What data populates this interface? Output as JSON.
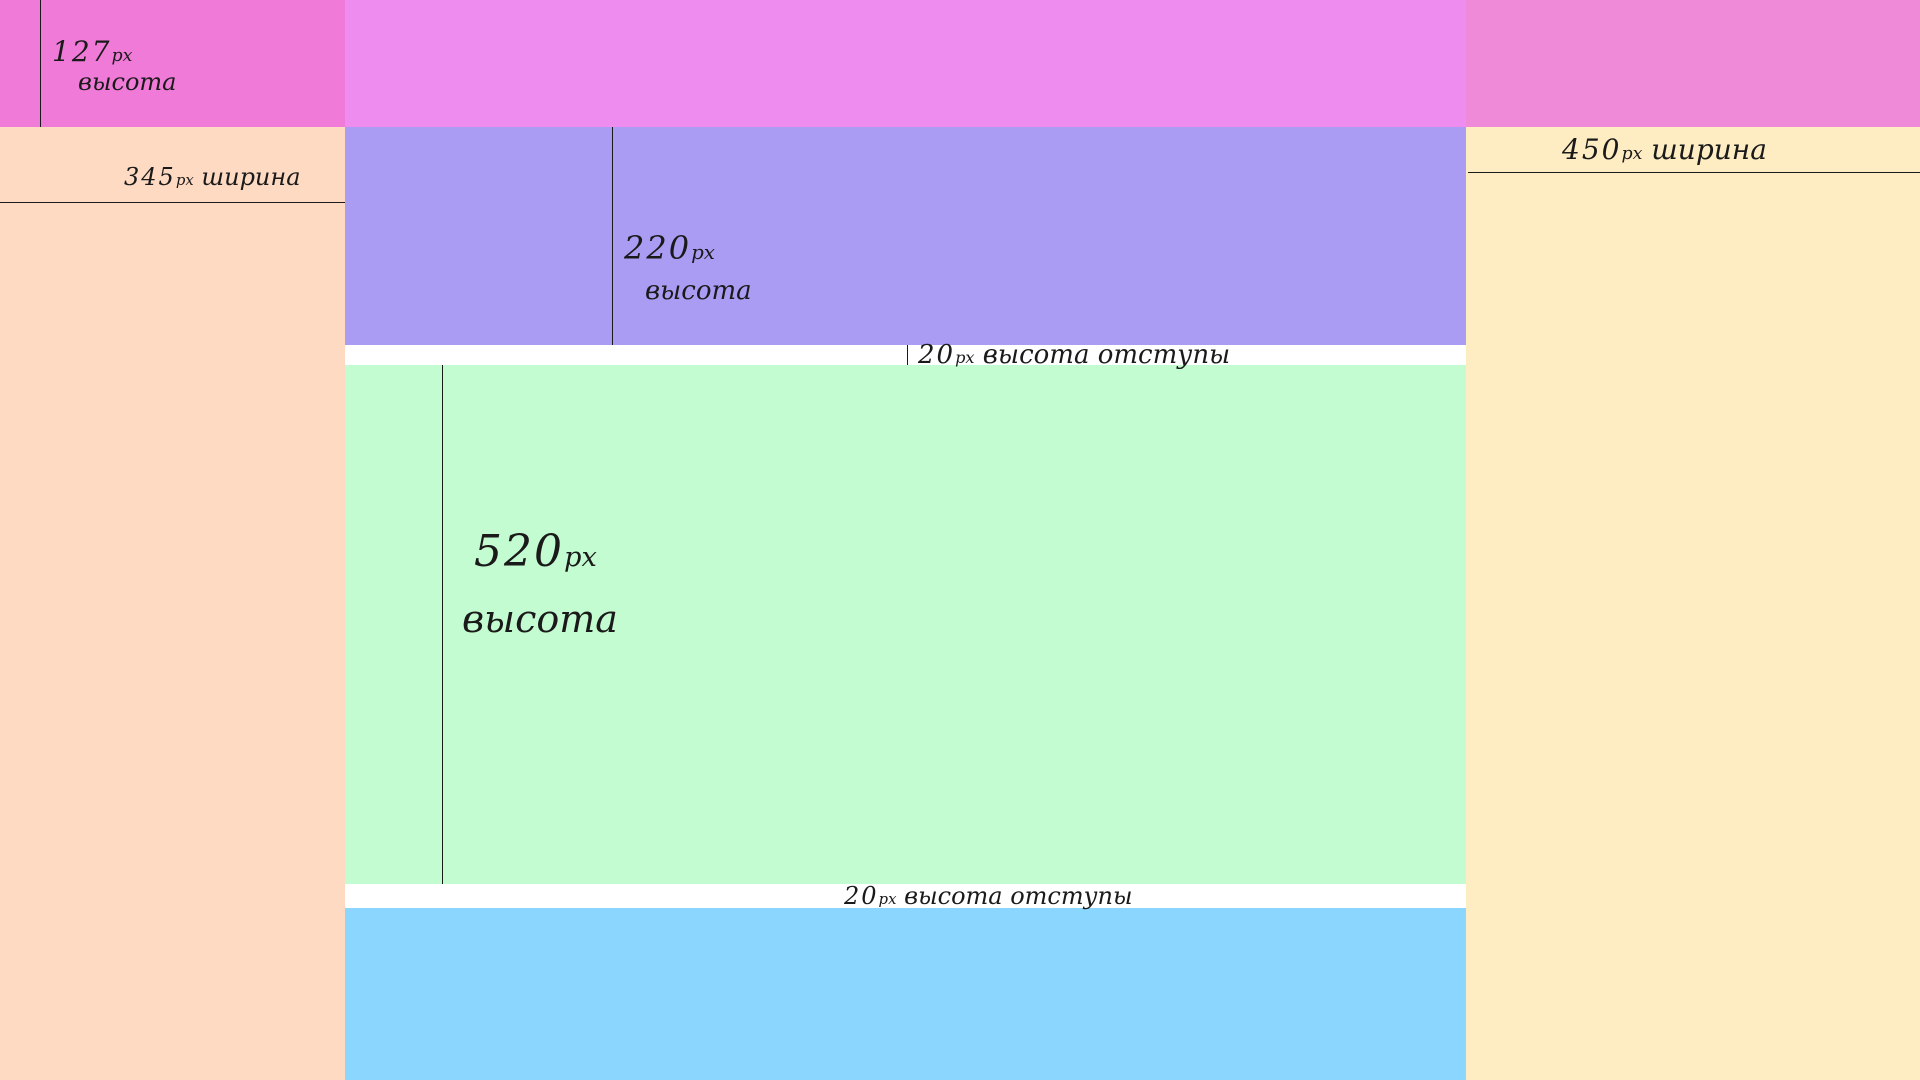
{
  "colors": {
    "header_left": "#ef7ad8",
    "header_center": "#ef8cf0",
    "header_right": "#ef8ad8",
    "left_sidebar": "#fedac2",
    "right_sidebar": "#feecc3",
    "upper_block": "#aa9cf3",
    "gap": "#ffffff",
    "main_block": "#c3fcd0",
    "bottom_block": "#8ad6fe"
  },
  "annotations": {
    "header_height": {
      "value": "127",
      "unit": "px",
      "word": "высота"
    },
    "left_width": {
      "value": "345",
      "unit": "px",
      "word": "ширина"
    },
    "right_width": {
      "value": "450",
      "unit": "px",
      "word": "ширина"
    },
    "upper_height": {
      "value": "220",
      "unit": "px",
      "word": "высота"
    },
    "gap_top": {
      "value": "20",
      "unit": "px",
      "word": "высота отступы"
    },
    "main_height": {
      "value": "520",
      "unit": "px",
      "word": "высота"
    },
    "gap_bottom": {
      "value": "20",
      "unit": "px",
      "word": "высота отступы"
    }
  }
}
